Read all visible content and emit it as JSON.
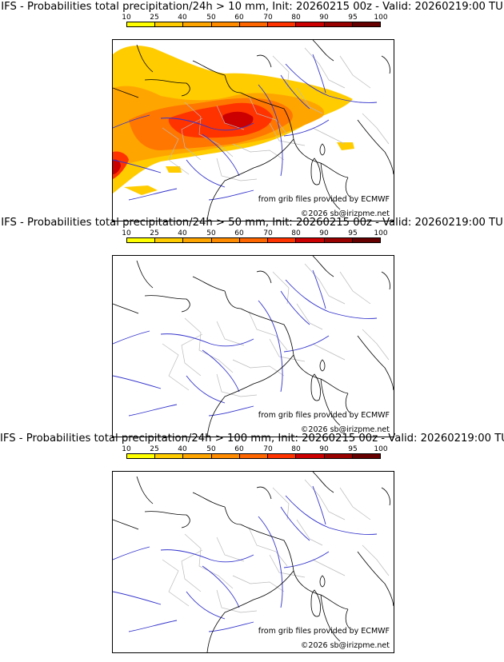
{
  "colorbar": {
    "ticks": [
      "10",
      "25",
      "40",
      "50",
      "60",
      "70",
      "80",
      "90",
      "95",
      "100"
    ],
    "colors": [
      "#ffff00",
      "#ffcc00",
      "#ffa500",
      "#ff8c00",
      "#ff6600",
      "#ff3300",
      "#cc0000",
      "#990000",
      "#660000"
    ]
  },
  "map_common": {
    "source_credit": "from grib files provided by ECMWF",
    "copyright": "©2026 sb@irizpme.net"
  },
  "panels": [
    {
      "title": "IFS - Probabilities total precipitation/24h > 10 mm, Init: 20260215 00z - Valid: 20260219:00 TU",
      "threshold_mm": 10,
      "has_probability_field": true
    },
    {
      "title": "IFS - Probabilities total precipitation/24h > 50 mm, Init: 20260215 00z - Valid: 20260219:00 TU",
      "threshold_mm": 50,
      "has_probability_field": false
    },
    {
      "title": "IFS - Probabilities total precipitation/24h > 100 mm, Init: 20260215 00z - Valid: 20260219:00 TU",
      "threshold_mm": 100,
      "has_probability_field": false
    }
  ]
}
